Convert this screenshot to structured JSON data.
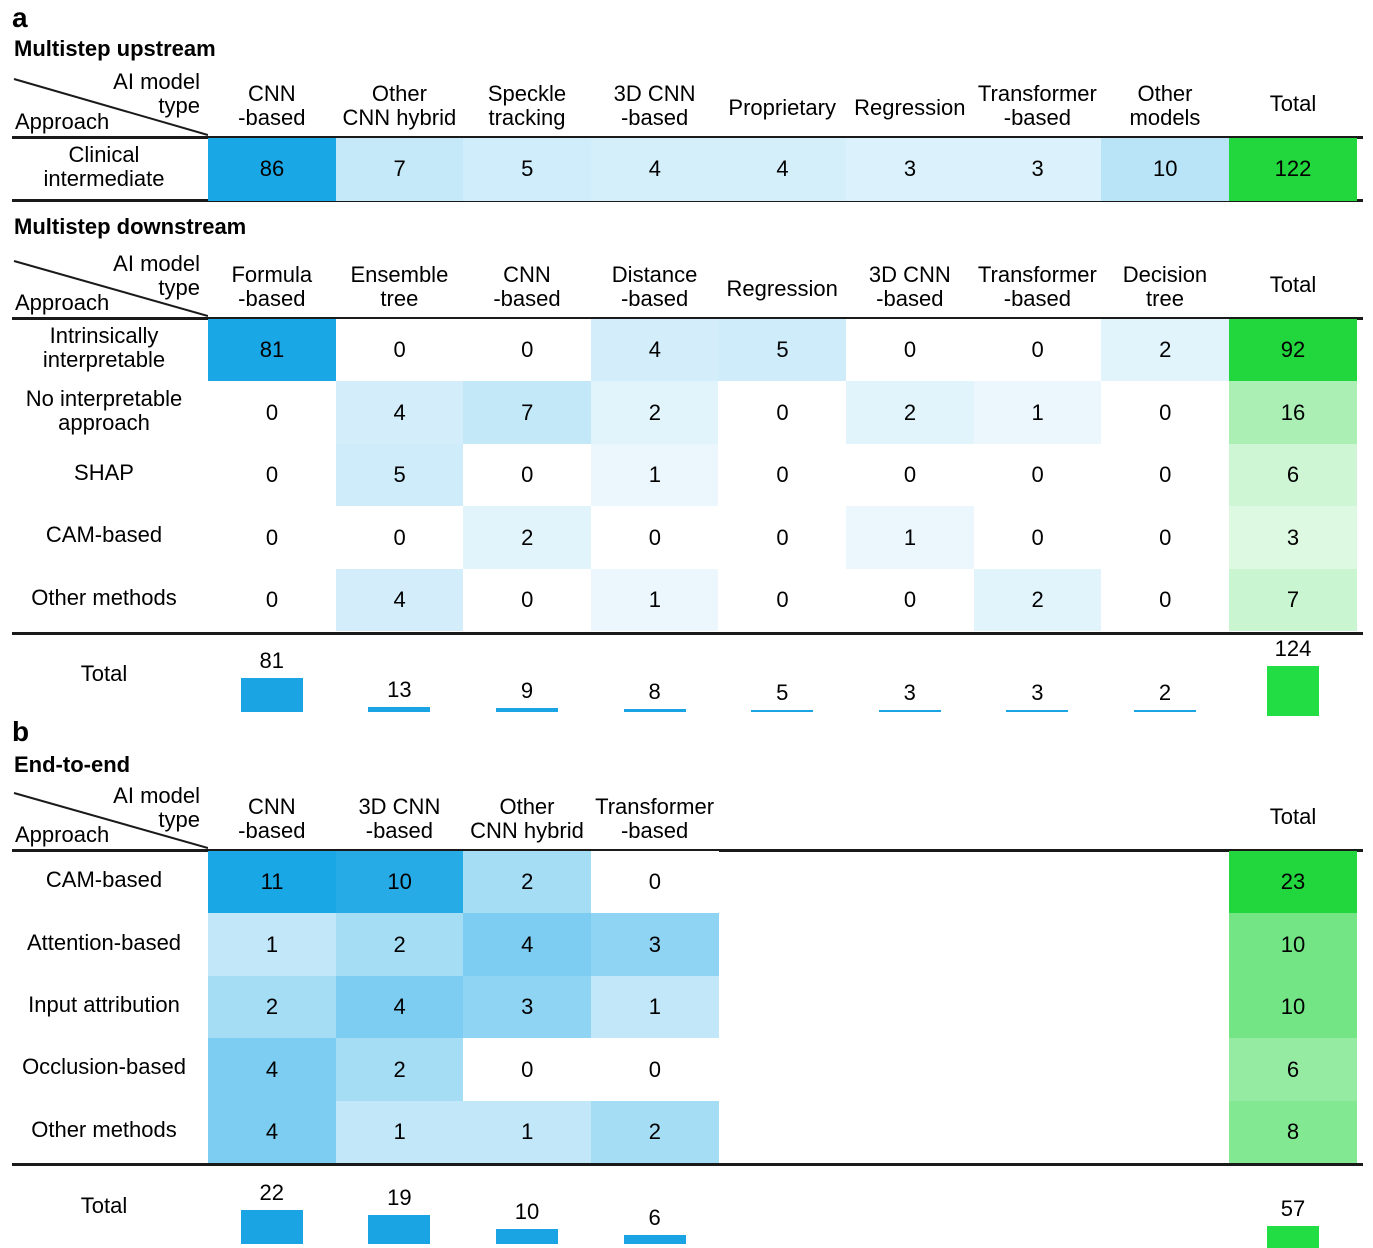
{
  "panels": [
    {
      "letter": "a",
      "label_y": 18
    },
    {
      "letter": "b",
      "label_y": 732
    }
  ],
  "colors": {
    "blue_max": "#1aa7e6",
    "green_max": "#22d63d",
    "total_bar_blue": "#1ba4e4",
    "total_bar_green": "#22dd44",
    "rule": "#1a1a1a"
  },
  "corner": {
    "top": "AI model\ntype",
    "bottom": "Approach"
  },
  "total_label": "Total",
  "chart_data": [
    {
      "type": "table",
      "title": "Multistep upstream",
      "columns": [
        "CNN\n-based",
        "Other\nCNN hybrid",
        "Speckle\ntracking",
        "3D CNN\n-based",
        "Proprietary",
        "Regression",
        "Transformer\n-based",
        "Other\nmodels"
      ],
      "rows": [
        {
          "label": "Clinical\nintermediate",
          "values": [
            86,
            7,
            5,
            4,
            4,
            3,
            3,
            10
          ],
          "total": 122
        }
      ]
    },
    {
      "type": "table",
      "title": "Multistep downstream",
      "columns": [
        "Formula\n-based",
        "Ensemble\ntree",
        "CNN\n-based",
        "Distance\n-based",
        "Regression",
        "3D CNN\n-based",
        "Transformer\n-based",
        "Decision\ntree"
      ],
      "rows": [
        {
          "label": "Intrinsically\ninterpretable",
          "values": [
            81,
            0,
            0,
            4,
            5,
            0,
            0,
            2
          ],
          "total": 92
        },
        {
          "label": "No interpretable\napproach",
          "values": [
            0,
            4,
            7,
            2,
            0,
            2,
            1,
            0
          ],
          "total": 16
        },
        {
          "label": "SHAP",
          "values": [
            0,
            5,
            0,
            1,
            0,
            0,
            0,
            0
          ],
          "total": 6
        },
        {
          "label": "CAM-based",
          "values": [
            0,
            0,
            2,
            0,
            0,
            1,
            0,
            0
          ],
          "total": 3
        },
        {
          "label": "Other methods",
          "values": [
            0,
            4,
            0,
            1,
            0,
            0,
            2,
            0
          ],
          "total": 7
        }
      ],
      "column_totals": [
        81,
        13,
        9,
        8,
        5,
        3,
        3,
        2
      ],
      "grand_total": 124
    },
    {
      "type": "table",
      "title": "End-to-end",
      "columns": [
        "CNN\n-based",
        "3D CNN\n-based",
        "Other\nCNN hybrid",
        "Transformer\n-based"
      ],
      "rows": [
        {
          "label": "CAM-based",
          "values": [
            11,
            10,
            2,
            0
          ],
          "total": 23
        },
        {
          "label": "Attention-based",
          "values": [
            1,
            2,
            4,
            3
          ],
          "total": 10
        },
        {
          "label": "Input attribution",
          "values": [
            2,
            4,
            3,
            1
          ],
          "total": 10
        },
        {
          "label": "Occlusion-based",
          "values": [
            4,
            2,
            0,
            0
          ],
          "total": 6
        },
        {
          "label": "Other methods",
          "values": [
            4,
            1,
            1,
            2
          ],
          "total": 8
        }
      ],
      "column_totals": [
        22,
        19,
        10,
        6
      ],
      "grand_total": 57
    }
  ]
}
